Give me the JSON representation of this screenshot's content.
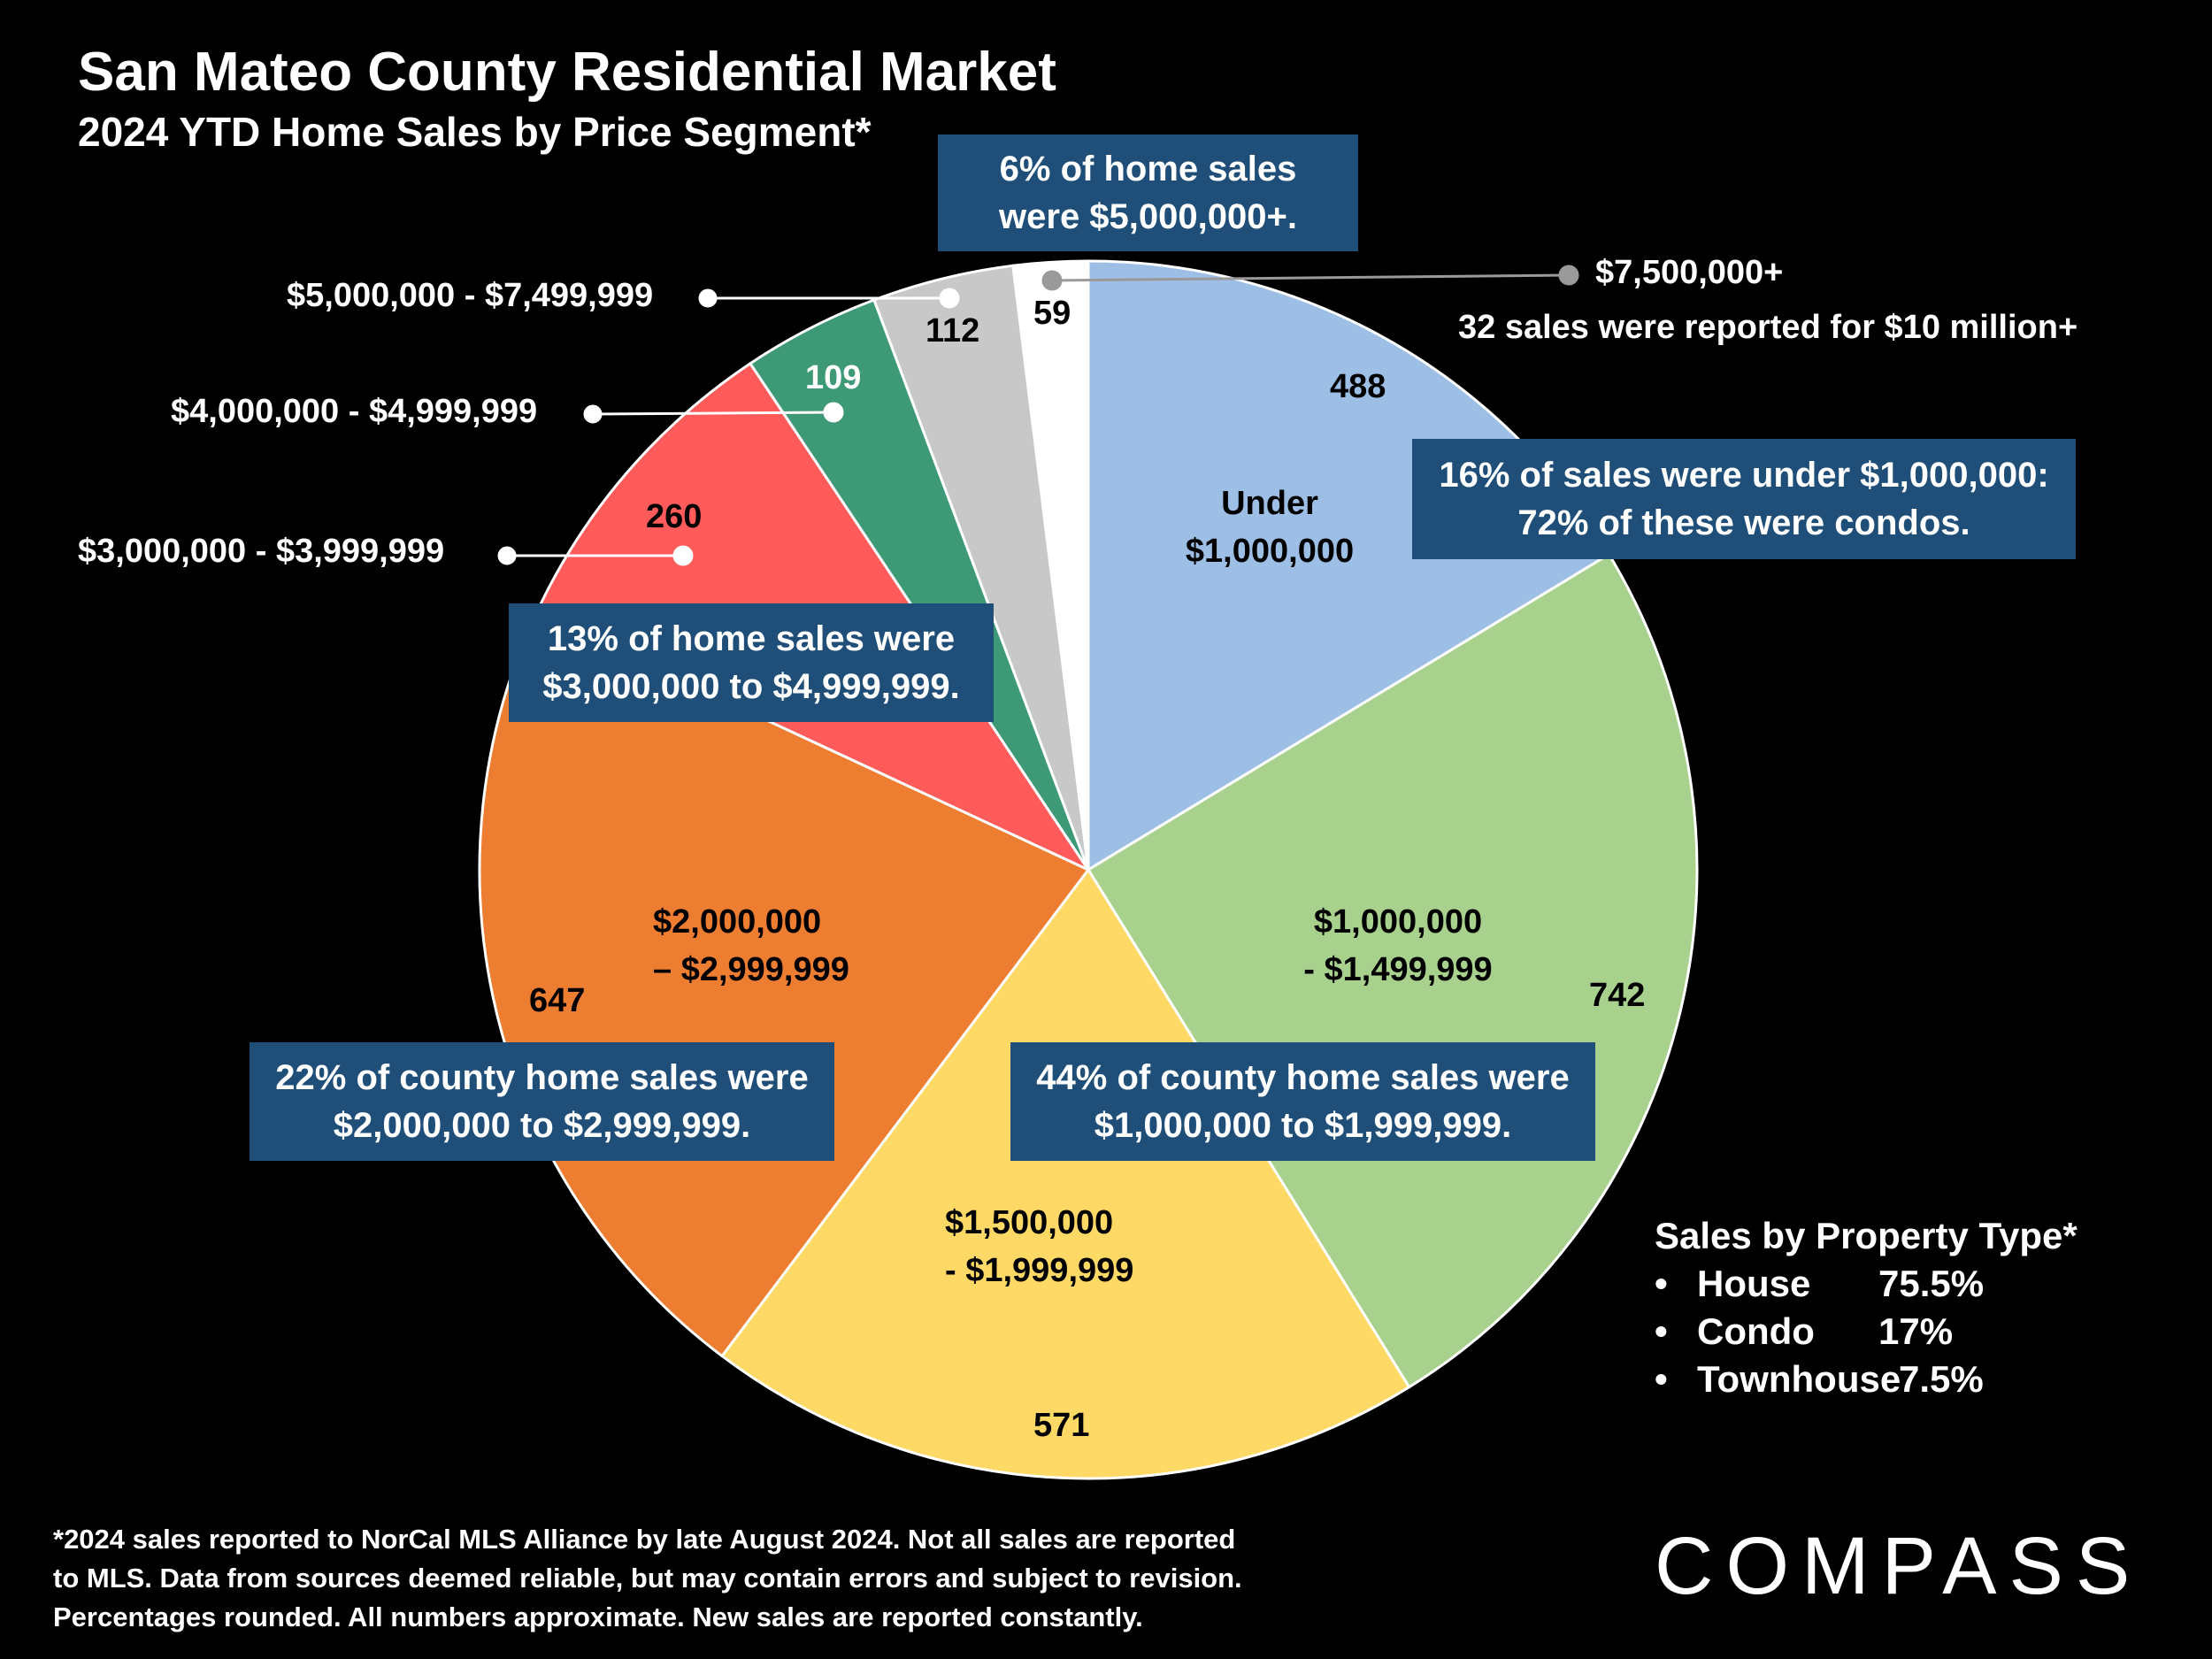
{
  "title": "San Mateo County Residential Market",
  "subtitle": "2024 YTD Home Sales by Price Segment*",
  "chart_data": {
    "type": "pie",
    "title": "2024 YTD Home Sales by Price Segment*",
    "slices": [
      {
        "name": "Under $1,000,000",
        "value": 488,
        "color": "#9dbfe6"
      },
      {
        "name": "$1,000,000 - $1,499,999",
        "value": 742,
        "color": "#a9d18e"
      },
      {
        "name": "$1,500,000 - $1,999,999",
        "value": 571,
        "color": "#ffd966"
      },
      {
        "name": "$2,000,000 – $2,999,999",
        "value": 647,
        "color": "#ed7d31"
      },
      {
        "name": "$3,000,000 - $3,999,999",
        "value": 260,
        "color": "#ff5b5b"
      },
      {
        "name": "$4,000,000 - $4,999,999",
        "value": 109,
        "color": "#3e9a76"
      },
      {
        "name": "$5,000,000 - $7,499,999",
        "value": 112,
        "color": "#c8c8c8"
      },
      {
        "name": "$7,500,000+",
        "value": 59,
        "color": "#ffffff"
      }
    ]
  },
  "slice_labels": {
    "under_1m_line1": "Under",
    "under_1m_line2": "$1,000,000",
    "s1m_line1": "$1,000,000",
    "s1m_line2": "- $1,499,999",
    "s15m_line1": "$1,500,000",
    "s15m_line2": "- $1,999,999",
    "s2m_line1": "$2,000,000",
    "s2m_line2": "– $2,999,999"
  },
  "values": {
    "v488": "488",
    "v742": "742",
    "v571": "571",
    "v647": "647",
    "v260": "260",
    "v109": "109",
    "v112": "112",
    "v59": "59"
  },
  "outer_labels": {
    "s5m": "$5,000,000 - $7,499,999",
    "s4m": "$4,000,000 - $4,999,999",
    "s3m": "$3,000,000 - $3,999,999",
    "s75m": "$7,500,000+",
    "s75m_note": "32 sales were reported for $10 million+"
  },
  "callouts": {
    "top_line1": "6% of home sales",
    "top_line2": "were $5,000,000+.",
    "right_line1": "16% of sales were under $1,000,000:",
    "right_line2": "72% of these were condos.",
    "mid_line1": "13% of home sales were",
    "mid_line2": "$3,000,000 to $4,999,999.",
    "left_line1": "22% of county home sales were",
    "left_line2": "$2,000,000 to $2,999,999.",
    "center_line1": "44% of county home sales were",
    "center_line2": "$1,000,000 to $1,999,999."
  },
  "property_type": {
    "heading": "Sales by Property Type*",
    "bullet": "•",
    "rows": [
      {
        "name": "House",
        "pct": "75.5%"
      },
      {
        "name": "Condo",
        "pct": "17%"
      },
      {
        "name": "Townhouse",
        "pct": "7.5%"
      }
    ]
  },
  "footnote": {
    "line1": "*2024 sales reported to NorCal MLS Alliance by late August 2024. Not all sales are reported",
    "line2": "to MLS. Data from sources deemed reliable, but may contain errors and subject to revision.",
    "line3": "Percentages rounded. All numbers approximate. New sales are reported constantly."
  },
  "logo": "COMPASS"
}
